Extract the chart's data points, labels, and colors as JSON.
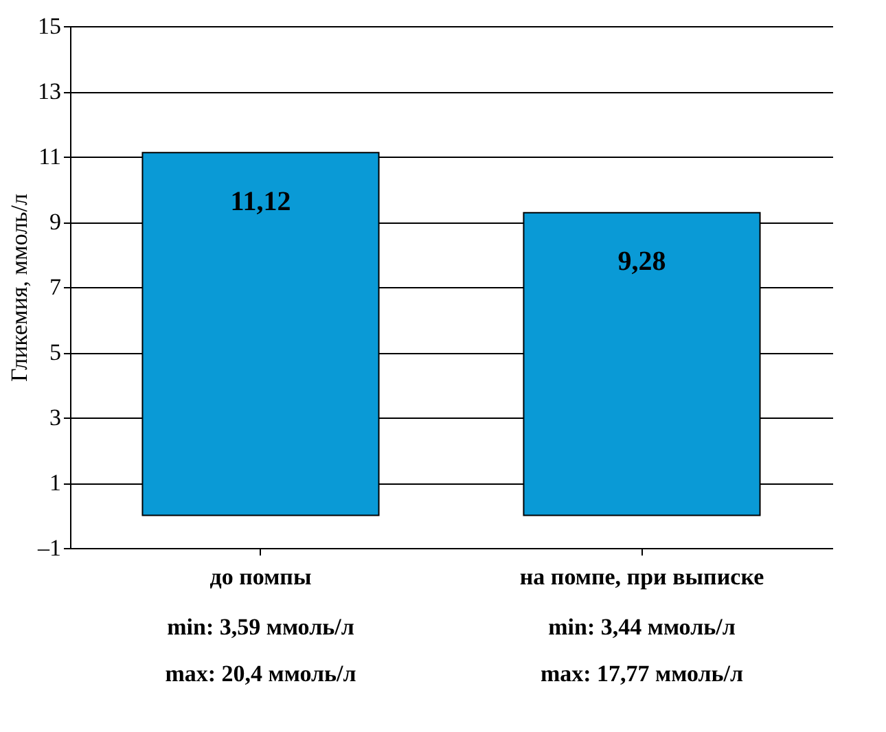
{
  "chart_data": {
    "type": "bar",
    "ylabel": "Гликемия, ммоль/л",
    "categories": [
      "до помпы",
      "на помпе, при выписке"
    ],
    "values": [
      11.12,
      9.28
    ],
    "color": "#0a9ad6",
    "value_labels": [
      "11,12",
      "9,28"
    ],
    "ylim": [
      -1,
      15
    ],
    "yticks": [
      {
        "value": -1,
        "label": "–1"
      },
      1,
      3,
      5,
      7,
      9,
      11,
      13,
      15
    ],
    "grid": "y",
    "annotations": [
      "min: 3,59 ммоль/л",
      "max: 20,4 ммоль/л",
      "min: 3,44 ммоль/л",
      "max: 17,77 ммоль/л"
    ]
  }
}
